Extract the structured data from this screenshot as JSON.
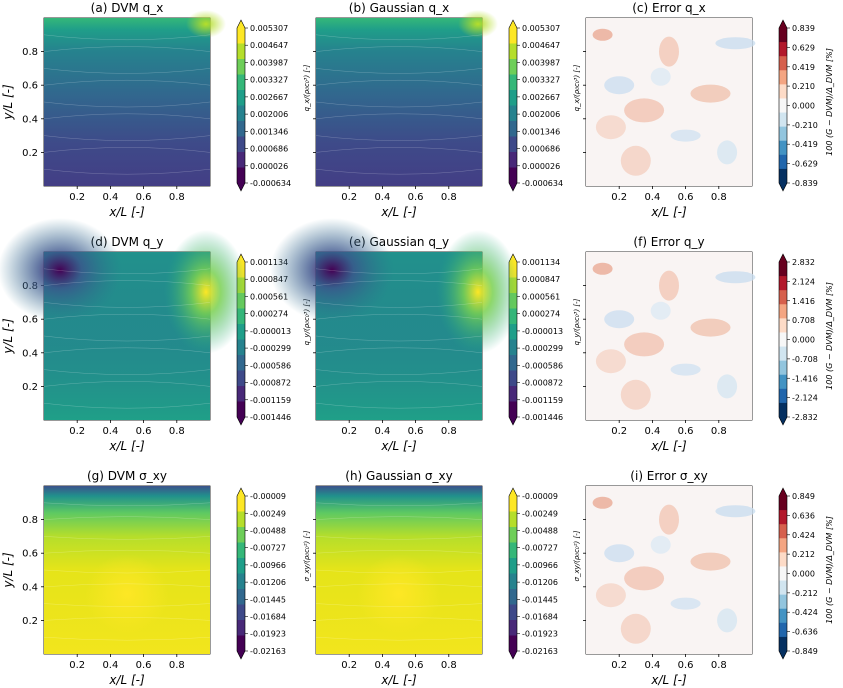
{
  "figure": {
    "xlabel": "x/L [-]",
    "ylabel": "y/L [-]",
    "xticks": [
      "0.2",
      "0.4",
      "0.6",
      "0.8"
    ],
    "yticks": [
      "0.2",
      "0.4",
      "0.6",
      "0.8"
    ],
    "error_cbar_label": "100 (G − DVM)/Δ_DVM [%]"
  },
  "chart_data": [
    {
      "type": "heatmap",
      "title": "(a) DVM q_x",
      "field": "qx",
      "cmap": "viridis",
      "show_ylabel": true,
      "show_cbar_label": false,
      "cbar_label": "",
      "cbar_ticks": [
        "0.005307",
        "0.004647",
        "0.003987",
        "0.003327",
        "0.002667",
        "0.002006",
        "0.001346",
        "0.000686",
        "0.000026",
        "-0.000634"
      ],
      "range": [
        -0.000634,
        0.005307
      ]
    },
    {
      "type": "heatmap",
      "title": "(b) Gaussian q_x",
      "field": "qx",
      "cmap": "viridis",
      "show_ylabel": false,
      "show_cbar_label": true,
      "cbar_label": "q_x/(ρ₀c₀³) [-]",
      "cbar_ticks": [
        "0.005307",
        "0.004647",
        "0.003987",
        "0.003327",
        "0.002667",
        "0.002006",
        "0.001346",
        "0.000686",
        "0.000026",
        "-0.000634"
      ],
      "range": [
        -0.000634,
        0.005307
      ]
    },
    {
      "type": "heatmap",
      "title": "(c) Error q_x",
      "field": "err",
      "cmap": "rdbu",
      "show_ylabel": false,
      "show_cbar_label": true,
      "cbar_label": "q_x/(ρ₀c₀³) [-]",
      "cbar_ticks": [
        "0.839",
        "0.629",
        "0.419",
        "0.210",
        "0.000",
        "-0.210",
        "-0.419",
        "-0.629",
        "-0.839"
      ],
      "range": [
        -0.839,
        0.839
      ]
    },
    {
      "type": "heatmap",
      "title": "(d) DVM q_y",
      "field": "qy",
      "cmap": "viridis",
      "show_ylabel": true,
      "show_cbar_label": false,
      "cbar_label": "",
      "cbar_ticks": [
        "0.001134",
        "0.000847",
        "0.000561",
        "0.000274",
        "-0.000013",
        "-0.000299",
        "-0.000586",
        "-0.000872",
        "-0.001159",
        "-0.001446"
      ],
      "range": [
        -0.001446,
        0.001134
      ]
    },
    {
      "type": "heatmap",
      "title": "(e) Gaussian q_y",
      "field": "qy",
      "cmap": "viridis",
      "show_ylabel": false,
      "show_cbar_label": true,
      "cbar_label": "q_y/(ρ₀c₀³) [-]",
      "cbar_ticks": [
        "0.001134",
        "0.000847",
        "0.000561",
        "0.000274",
        "-0.000013",
        "-0.000299",
        "-0.000586",
        "-0.000872",
        "-0.001159",
        "-0.001446"
      ],
      "range": [
        -0.001446,
        0.001134
      ]
    },
    {
      "type": "heatmap",
      "title": "(f) Error q_y",
      "field": "err",
      "cmap": "rdbu",
      "show_ylabel": false,
      "show_cbar_label": true,
      "cbar_label": "q_y/(ρ₀c₀³) [-]",
      "cbar_ticks": [
        "2.832",
        "2.124",
        "1.416",
        "0.708",
        "0.000",
        "-0.708",
        "-1.416",
        "-2.124",
        "-2.832"
      ],
      "range": [
        -2.832,
        2.832
      ]
    },
    {
      "type": "heatmap",
      "title": "(g) DVM σ_xy",
      "field": "sxy",
      "cmap": "viridis",
      "show_ylabel": true,
      "show_cbar_label": false,
      "cbar_label": "",
      "cbar_ticks": [
        "-0.00009",
        "-0.00249",
        "-0.00488",
        "-0.00727",
        "-0.00966",
        "-0.01206",
        "-0.01445",
        "-0.01684",
        "-0.01923",
        "-0.02163"
      ],
      "range": [
        -0.02163,
        -9e-05
      ]
    },
    {
      "type": "heatmap",
      "title": "(h) Gaussian σ_xy",
      "field": "sxy",
      "cmap": "viridis",
      "show_ylabel": false,
      "show_cbar_label": true,
      "cbar_label": "σ_xy/(ρ₀c₀²) [-]",
      "cbar_ticks": [
        "-0.00009",
        "-0.00249",
        "-0.00488",
        "-0.00727",
        "-0.00966",
        "-0.01206",
        "-0.01445",
        "-0.01684",
        "-0.01923",
        "-0.02163"
      ],
      "range": [
        -0.02163,
        -9e-05
      ]
    },
    {
      "type": "heatmap",
      "title": "(i) Error σ_xy",
      "field": "err",
      "cmap": "rdbu",
      "show_ylabel": false,
      "show_cbar_label": true,
      "cbar_label": "σ_xy/(ρ₀c₀²) [-]",
      "cbar_ticks": [
        "0.849",
        "0.636",
        "0.424",
        "0.212",
        "0.000",
        "-0.212",
        "-0.424",
        "-0.636",
        "-0.849"
      ],
      "range": [
        -0.849,
        0.849
      ]
    }
  ]
}
